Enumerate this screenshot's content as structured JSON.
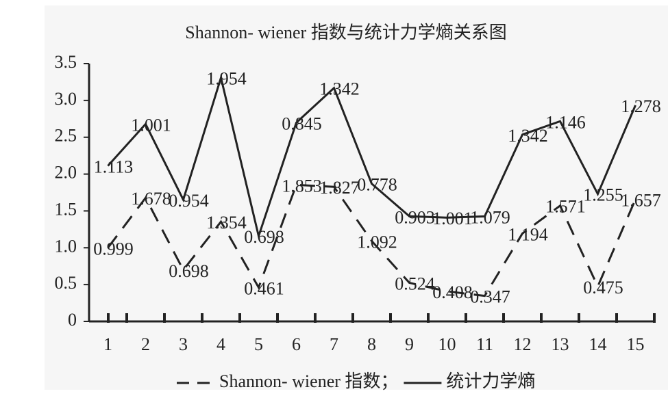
{
  "chart_data": {
    "type": "line",
    "stacked": true,
    "title": "Shannon- wiener 指数与统计力学熵关系图",
    "categories": [
      "1",
      "2",
      "3",
      "4",
      "5",
      "6",
      "7",
      "8",
      "9",
      "10",
      "11",
      "12",
      "13",
      "14",
      "15"
    ],
    "series": [
      {
        "name": "Shannon- wiener 指数；",
        "color": "#222222",
        "dash": true,
        "values": [
          0.999,
          1.678,
          0.698,
          1.354,
          0.461,
          1.853,
          1.827,
          1.092,
          0.524,
          0.408,
          0.347,
          1.194,
          1.571,
          0.475,
          1.657
        ]
      },
      {
        "name": "统计力学熵",
        "color": "#222222",
        "dash": false,
        "values": [
          1.113,
          1.001,
          0.954,
          1.954,
          0.698,
          0.845,
          1.342,
          0.778,
          0.903,
          1.001,
          1.079,
          1.342,
          1.146,
          1.255,
          1.278
        ]
      }
    ],
    "ylim": [
      0,
      3.5
    ],
    "yticks": [
      0,
      0.5,
      {
        "value": 1,
        "label": "1.0"
      },
      1.5,
      {
        "value": 2,
        "label": "2.0"
      },
      2.5,
      {
        "value": 3,
        "label": "3.0"
      },
      3.5
    ],
    "grid": false,
    "legend": "bottom"
  }
}
